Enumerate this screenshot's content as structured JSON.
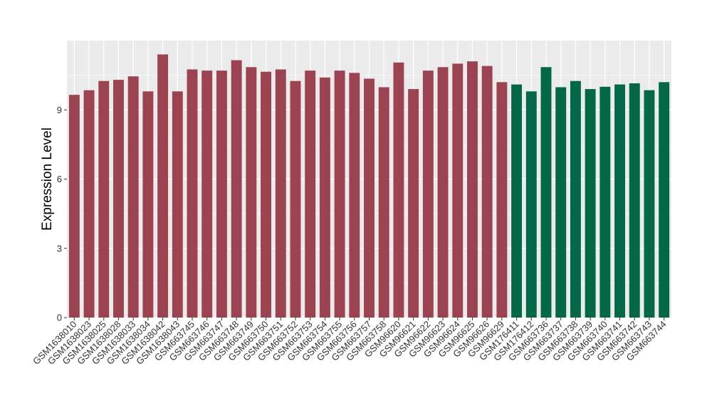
{
  "chart_data": {
    "type": "bar",
    "title": "",
    "xlabel": "",
    "ylabel": "Expression Level",
    "ylim": [
      0,
      12.0
    ],
    "yticks": [
      0,
      3,
      6,
      9
    ],
    "grid": true,
    "legend": "none",
    "categories": [
      "GSM1638010",
      "GSM1638023",
      "GSM1638025",
      "GSM1638028",
      "GSM1638033",
      "GSM1638034",
      "GSM1638042",
      "GSM1638043",
      "GSM663745",
      "GSM663746",
      "GSM663747",
      "GSM663748",
      "GSM663749",
      "GSM663750",
      "GSM663751",
      "GSM663752",
      "GSM663753",
      "GSM663754",
      "GSM663755",
      "GSM663756",
      "GSM663757",
      "GSM663758",
      "GSM96620",
      "GSM96621",
      "GSM96622",
      "GSM96623",
      "GSM96624",
      "GSM96625",
      "GSM96626",
      "GSM96629",
      "GSM176411",
      "GSM176412",
      "GSM663736",
      "GSM663737",
      "GSM663738",
      "GSM663739",
      "GSM663740",
      "GSM663741",
      "GSM663742",
      "GSM663743",
      "GSM663744"
    ],
    "values": [
      9.65,
      9.85,
      10.25,
      10.3,
      10.45,
      9.8,
      11.4,
      9.8,
      10.75,
      10.7,
      10.7,
      11.15,
      10.85,
      10.65,
      10.75,
      10.25,
      10.7,
      10.4,
      10.7,
      10.6,
      10.35,
      9.98,
      11.05,
      9.9,
      10.7,
      10.85,
      11.0,
      11.1,
      10.9,
      10.2,
      10.1,
      9.8,
      10.85,
      9.98,
      10.25,
      9.9,
      10.0,
      10.1,
      10.15,
      9.85,
      10.2
    ],
    "bar_colors": [
      "#9b4350",
      "#9b4350",
      "#9b4350",
      "#9b4350",
      "#9b4350",
      "#9b4350",
      "#9b4350",
      "#9b4350",
      "#9b4350",
      "#9b4350",
      "#9b4350",
      "#9b4350",
      "#9b4350",
      "#9b4350",
      "#9b4350",
      "#9b4350",
      "#9b4350",
      "#9b4350",
      "#9b4350",
      "#9b4350",
      "#9b4350",
      "#9b4350",
      "#9b4350",
      "#9b4350",
      "#9b4350",
      "#9b4350",
      "#9b4350",
      "#9b4350",
      "#9b4350",
      "#9b4350",
      "#036848",
      "#036848",
      "#036848",
      "#036848",
      "#036848",
      "#036848",
      "#036848",
      "#036848",
      "#036848",
      "#036848",
      "#036848"
    ],
    "panel_background": "#ebebeb",
    "grid_color": "#ffffff"
  }
}
